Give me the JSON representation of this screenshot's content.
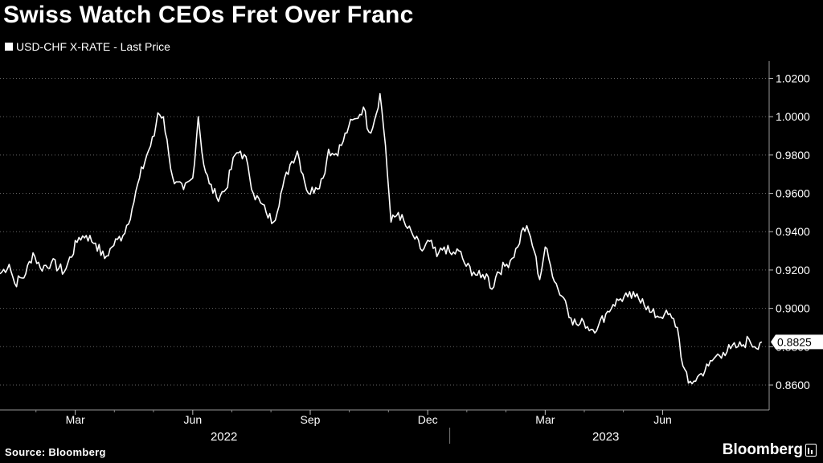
{
  "chart_data": {
    "type": "line",
    "title": "Swiss Watch CEOs Fret Over Franc",
    "series": [
      {
        "name": "USD-CHF X-RATE - Last Price",
        "color": "#ffffff"
      }
    ],
    "last_value_label": "0.8825",
    "xlabel": "",
    "ylabel": "",
    "ylim": [
      0.847,
      1.029
    ],
    "yticks": [
      1.02,
      1.0,
      0.98,
      0.96,
      0.94,
      0.92,
      0.9,
      0.88,
      0.86
    ],
    "ytick_labels": [
      "1.0200",
      "1.0000",
      "0.9800",
      "0.9600",
      "0.9400",
      "0.9200",
      "0.9000",
      "0.8800",
      "0.8600"
    ],
    "month_ticks": [
      {
        "label": "Mar",
        "index": 41
      },
      {
        "label": "Jun",
        "index": 105
      },
      {
        "label": "Sep",
        "index": 169
      },
      {
        "label": "Dec",
        "index": 233
      },
      {
        "label": "Mar",
        "index": 297
      },
      {
        "label": "Jun",
        "index": 361
      }
    ],
    "year_labels": [
      {
        "label": "2022",
        "index": 122
      },
      {
        "label": "2023",
        "index": 330
      }
    ],
    "year_boundary_index": 245,
    "x_count": 420,
    "keypoints": [
      [
        0,
        0.918
      ],
      [
        5,
        0.923
      ],
      [
        8,
        0.913
      ],
      [
        14,
        0.918
      ],
      [
        18,
        0.929
      ],
      [
        22,
        0.921
      ],
      [
        28,
        0.924
      ],
      [
        35,
        0.919
      ],
      [
        43,
        0.937
      ],
      [
        47,
        0.938
      ],
      [
        52,
        0.934
      ],
      [
        57,
        0.926
      ],
      [
        61,
        0.932
      ],
      [
        64,
        0.936
      ],
      [
        67,
        0.938
      ],
      [
        72,
        0.952
      ],
      [
        76,
        0.968
      ],
      [
        80,
        0.98
      ],
      [
        84,
        0.99
      ],
      [
        86,
        1.002
      ],
      [
        89,
        1.0
      ],
      [
        92,
        0.98
      ],
      [
        95,
        0.965
      ],
      [
        100,
        0.962
      ],
      [
        105,
        0.968
      ],
      [
        108,
        1.0
      ],
      [
        111,
        0.975
      ],
      [
        114,
        0.965
      ],
      [
        118,
        0.958
      ],
      [
        123,
        0.962
      ],
      [
        128,
        0.98
      ],
      [
        131,
        0.982
      ],
      [
        135,
        0.975
      ],
      [
        138,
        0.96
      ],
      [
        142,
        0.955
      ],
      [
        145,
        0.95
      ],
      [
        149,
        0.945
      ],
      [
        153,
        0.96
      ],
      [
        158,
        0.975
      ],
      [
        162,
        0.982
      ],
      [
        165,
        0.97
      ],
      [
        168,
        0.96
      ],
      [
        172,
        0.963
      ],
      [
        176,
        0.968
      ],
      [
        179,
        0.983
      ],
      [
        182,
        0.98
      ],
      [
        186,
        0.985
      ],
      [
        190,
        0.995
      ],
      [
        194,
        0.999
      ],
      [
        198,
        1.005
      ],
      [
        201,
        0.992
      ],
      [
        204,
        0.998
      ],
      [
        207,
        1.012
      ],
      [
        210,
        0.985
      ],
      [
        213,
        0.945
      ],
      [
        217,
        0.95
      ],
      [
        221,
        0.943
      ],
      [
        225,
        0.938
      ],
      [
        230,
        0.93
      ],
      [
        234,
        0.935
      ],
      [
        238,
        0.927
      ],
      [
        242,
        0.932
      ],
      [
        246,
        0.928
      ],
      [
        250,
        0.93
      ],
      [
        254,
        0.922
      ],
      [
        258,
        0.919
      ],
      [
        262,
        0.916
      ],
      [
        265,
        0.918
      ],
      [
        268,
        0.91
      ],
      [
        271,
        0.919
      ],
      [
        275,
        0.922
      ],
      [
        278,
        0.925
      ],
      [
        282,
        0.932
      ],
      [
        285,
        0.942
      ],
      [
        288,
        0.94
      ],
      [
        291,
        0.93
      ],
      [
        294,
        0.915
      ],
      [
        297,
        0.932
      ],
      [
        300,
        0.922
      ],
      [
        304,
        0.91
      ],
      [
        308,
        0.904
      ],
      [
        311,
        0.895
      ],
      [
        315,
        0.891
      ],
      [
        318,
        0.893
      ],
      [
        322,
        0.889
      ],
      [
        326,
        0.891
      ],
      [
        330,
        0.897
      ],
      [
        334,
        0.902
      ],
      [
        338,
        0.905
      ],
      [
        342,
        0.906
      ],
      [
        346,
        0.906
      ],
      [
        350,
        0.905
      ],
      [
        354,
        0.898
      ],
      [
        358,
        0.896
      ],
      [
        362,
        0.897
      ],
      [
        366,
        0.895
      ],
      [
        369,
        0.89
      ],
      [
        372,
        0.87
      ],
      [
        375,
        0.861
      ],
      [
        378,
        0.862
      ],
      [
        382,
        0.866
      ],
      [
        386,
        0.87
      ],
      [
        390,
        0.875
      ],
      [
        394,
        0.877
      ],
      [
        398,
        0.879
      ],
      [
        402,
        0.88
      ],
      [
        405,
        0.881
      ],
      [
        408,
        0.884
      ],
      [
        411,
        0.88
      ],
      [
        414,
        0.882
      ],
      [
        415,
        0.8825
      ]
    ]
  }
}
